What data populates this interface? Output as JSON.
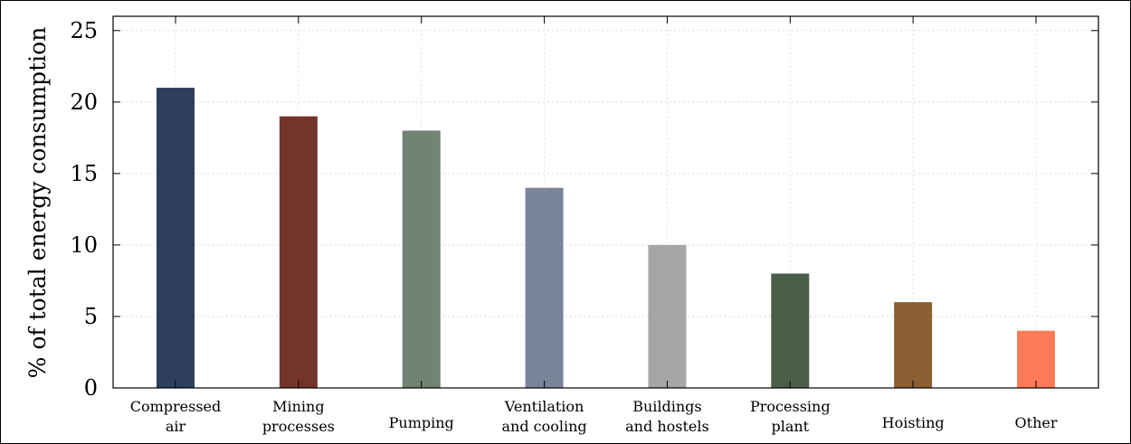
{
  "chart_data": {
    "type": "bar",
    "ylabel": "% of total energy consumption",
    "xlabel": "",
    "ylim": [
      0,
      26
    ],
    "yticks": [
      0,
      5,
      10,
      15,
      20,
      25
    ],
    "grid": true,
    "categories": [
      [
        "Compressed",
        "air"
      ],
      [
        "Mining",
        "processes"
      ],
      [
        "Pumping"
      ],
      [
        "Ventilation",
        "and cooling"
      ],
      [
        "Buildings",
        "and hostels"
      ],
      [
        "Processing",
        "plant"
      ],
      [
        "Hoisting"
      ],
      [
        "Other"
      ]
    ],
    "values": [
      21,
      19,
      18,
      14,
      10,
      8,
      6,
      4
    ],
    "colors": [
      "#2e3f5e",
      "#733529",
      "#718372",
      "#7a8499",
      "#a6a6a6",
      "#4a5f4a",
      "#8c6033",
      "#ff7a57"
    ]
  }
}
